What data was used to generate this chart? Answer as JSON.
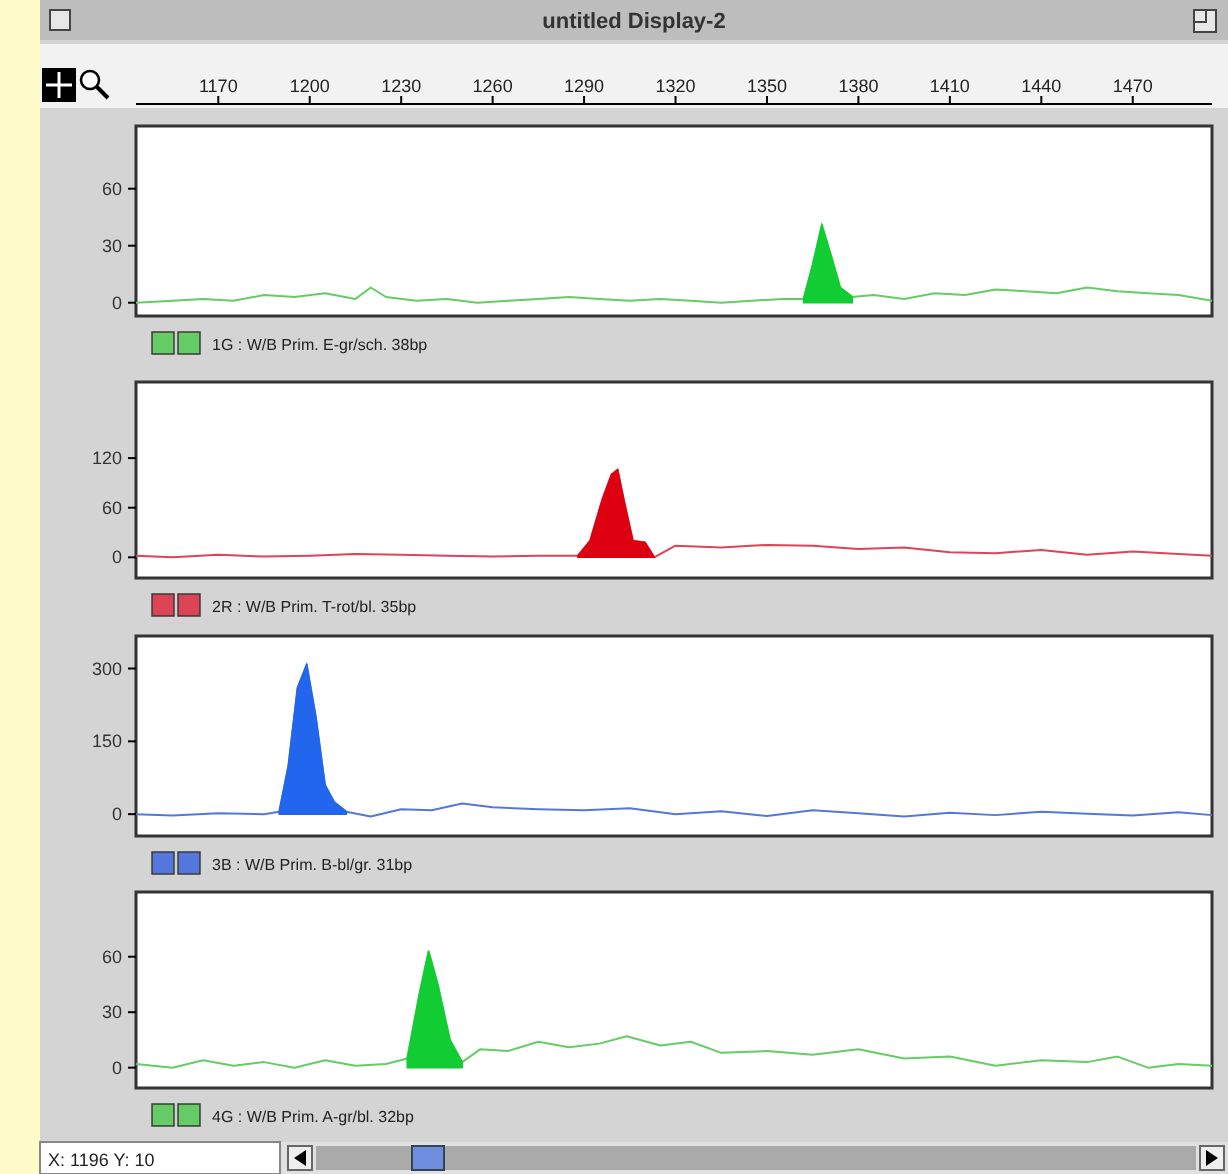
{
  "chart_data": [
    {
      "type": "line",
      "title": "untitled Display-2",
      "xlim": [
        1143,
        1496
      ],
      "xticks": [
        1170,
        1200,
        1230,
        1260,
        1290,
        1320,
        1350,
        1380,
        1410,
        1440,
        1470
      ],
      "ylim": [
        -7,
        93
      ],
      "yticks": [
        0,
        30,
        60
      ],
      "legend": "bottom",
      "series": [
        {
          "name": "1G : W/B Prim. E-gr/sch. 38bp",
          "color": "#66cc66",
          "x": [
            1143,
            1155,
            1165,
            1175,
            1185,
            1195,
            1205,
            1215,
            1220,
            1225,
            1235,
            1245,
            1255,
            1265,
            1275,
            1285,
            1295,
            1305,
            1315,
            1325,
            1335,
            1345,
            1355,
            1362,
            1365,
            1368,
            1371,
            1374,
            1378,
            1385,
            1395,
            1405,
            1415,
            1425,
            1435,
            1445,
            1455,
            1465,
            1475,
            1485,
            1496
          ],
          "values": [
            0,
            1,
            2,
            1,
            4,
            3,
            5,
            2,
            8,
            3,
            1,
            2,
            0,
            1,
            2,
            3,
            2,
            1,
            2,
            1,
            0,
            1,
            2,
            2,
            20,
            41,
            25,
            8,
            3,
            4,
            2,
            5,
            4,
            7,
            6,
            5,
            8,
            6,
            5,
            4,
            1
          ]
        },
        {
          "type": "area",
          "color": "#11cc33",
          "x": [
            1362,
            1365,
            1368,
            1371,
            1374,
            1378
          ],
          "values": [
            2,
            20,
            41,
            25,
            8,
            3
          ]
        }
      ]
    },
    {
      "type": "line",
      "xlim": [
        1143,
        1496
      ],
      "ylim": [
        -25,
        212
      ],
      "yticks": [
        0,
        60,
        120
      ],
      "tick_labels": "y",
      "legend": "bottom",
      "series": [
        {
          "name": "2R : W/B Prim. T-rot/bl. 35bp",
          "color": "#dd4455",
          "x": [
            1143,
            1155,
            1170,
            1185,
            1200,
            1215,
            1230,
            1245,
            1260,
            1275,
            1288,
            1292,
            1296,
            1299,
            1301,
            1303,
            1306,
            1310,
            1313,
            1320,
            1335,
            1350,
            1365,
            1380,
            1395,
            1410,
            1425,
            1440,
            1455,
            1470,
            1485,
            1496
          ],
          "values": [
            2,
            0,
            3,
            1,
            2,
            4,
            3,
            2,
            1,
            2,
            2,
            20,
            70,
            100,
            106,
            70,
            20,
            18,
            0,
            14,
            12,
            15,
            14,
            10,
            12,
            6,
            5,
            9,
            3,
            7,
            4,
            2
          ]
        },
        {
          "type": "area",
          "color": "#dd0011",
          "x": [
            1288,
            1292,
            1296,
            1299,
            1301,
            1303,
            1306,
            1310,
            1313
          ],
          "values": [
            2,
            20,
            70,
            100,
            106,
            70,
            20,
            18,
            0
          ]
        }
      ]
    },
    {
      "type": "line",
      "xlim": [
        1143,
        1496
      ],
      "ylim": [
        -45,
        367
      ],
      "yticks": [
        0,
        150,
        300
      ],
      "tick_labels": "y",
      "legend": "bottom",
      "series": [
        {
          "name": "3B : W/B Prim. B-bl/gr. 31bp",
          "color": "#5577dd",
          "x": [
            1143,
            1155,
            1170,
            1185,
            1190,
            1193,
            1196,
            1199,
            1202,
            1205,
            1208,
            1212,
            1220,
            1230,
            1240,
            1250,
            1260,
            1275,
            1290,
            1305,
            1320,
            1335,
            1350,
            1365,
            1380,
            1395,
            1410,
            1425,
            1440,
            1455,
            1470,
            1485,
            1496
          ],
          "values": [
            0,
            -3,
            2,
            0,
            5,
            100,
            260,
            308,
            200,
            60,
            25,
            5,
            -5,
            10,
            8,
            22,
            14,
            10,
            8,
            12,
            0,
            6,
            -4,
            8,
            2,
            -5,
            3,
            -2,
            5,
            1,
            -3,
            4,
            -2
          ]
        },
        {
          "type": "area",
          "color": "#2266ee",
          "x": [
            1190,
            1193,
            1196,
            1199,
            1202,
            1205,
            1208,
            1212
          ],
          "values": [
            5,
            100,
            260,
            308,
            200,
            60,
            25,
            5
          ]
        }
      ]
    },
    {
      "type": "line",
      "xlim": [
        1143,
        1496
      ],
      "ylim": [
        -11,
        95
      ],
      "yticks": [
        0,
        30,
        60
      ],
      "tick_labels": "y",
      "legend": "bottom",
      "annotations": [
        "X: 1196  Y: 10"
      ],
      "series": [
        {
          "name": "4G : W/B Prim. A-gr/bl. 32bp",
          "color": "#66cc66",
          "x": [
            1143,
            1155,
            1165,
            1175,
            1185,
            1195,
            1205,
            1215,
            1225,
            1232,
            1236,
            1239,
            1242,
            1246,
            1250,
            1256,
            1265,
            1275,
            1285,
            1295,
            1304,
            1315,
            1325,
            1335,
            1350,
            1365,
            1380,
            1395,
            1410,
            1425,
            1440,
            1455,
            1465,
            1475,
            1485,
            1496
          ],
          "values": [
            2,
            0,
            4,
            1,
            3,
            0,
            4,
            1,
            2,
            5,
            40,
            63,
            45,
            15,
            3,
            10,
            9,
            14,
            11,
            13,
            17,
            12,
            14,
            8,
            9,
            7,
            10,
            5,
            6,
            1,
            4,
            3,
            6,
            0,
            2,
            1
          ]
        },
        {
          "type": "area",
          "color": "#11cc33",
          "x": [
            1232,
            1236,
            1239,
            1242,
            1246,
            1250
          ],
          "values": [
            5,
            40,
            63,
            45,
            15,
            3
          ]
        }
      ]
    }
  ]
}
